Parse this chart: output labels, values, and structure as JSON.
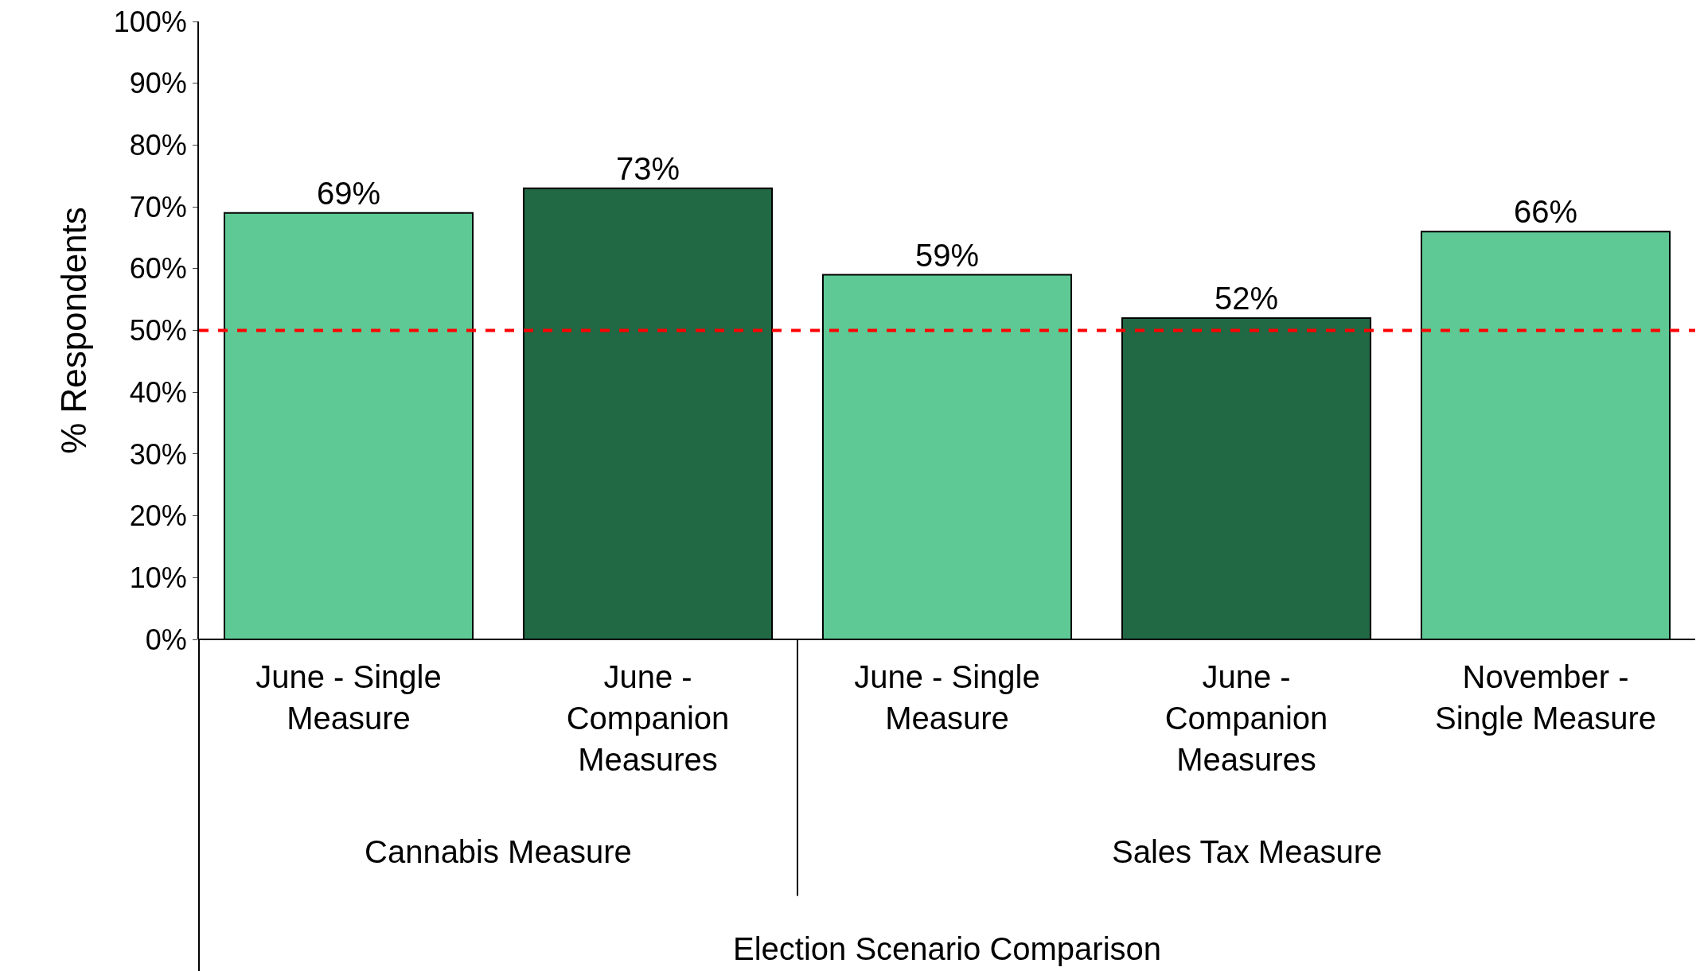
{
  "chart_data": {
    "type": "bar",
    "categories": [
      "June - Single Measure",
      "June - Companion Measures",
      "June - Single Measure",
      "June - Companion Measures",
      "November - Single Measure"
    ],
    "values": [
      69,
      73,
      59,
      52,
      66
    ],
    "value_labels": [
      "69%",
      "73%",
      "59%",
      "52%",
      "66%"
    ],
    "colors": [
      "#5ec994",
      "#216844",
      "#5ec994",
      "#216844",
      "#5ec994"
    ],
    "xlabel": "Election Scenario Comparison",
    "ylabel": "% Respondents",
    "annotations": [
      "Cannabis Measure",
      "Sales Tax Measure"
    ],
    "ylim": [
      0,
      100
    ],
    "yticks": [
      {
        "value": 0,
        "label": "0%"
      },
      {
        "value": 10,
        "label": "10%"
      },
      {
        "value": 20,
        "label": "20%"
      },
      {
        "value": 30,
        "label": "30%"
      },
      {
        "value": 40,
        "label": "40%"
      },
      {
        "value": 50,
        "label": "50%"
      },
      {
        "value": 60,
        "label": "60%"
      },
      {
        "value": 70,
        "label": "70%"
      },
      {
        "value": 80,
        "label": "80%"
      },
      {
        "value": 90,
        "label": "90%"
      },
      {
        "value": 100,
        "label": "100%"
      }
    ],
    "ref_lines": [
      {
        "axis": "y",
        "value": 50,
        "color": "#ff0000",
        "line_style": "dashed"
      }
    ]
  }
}
